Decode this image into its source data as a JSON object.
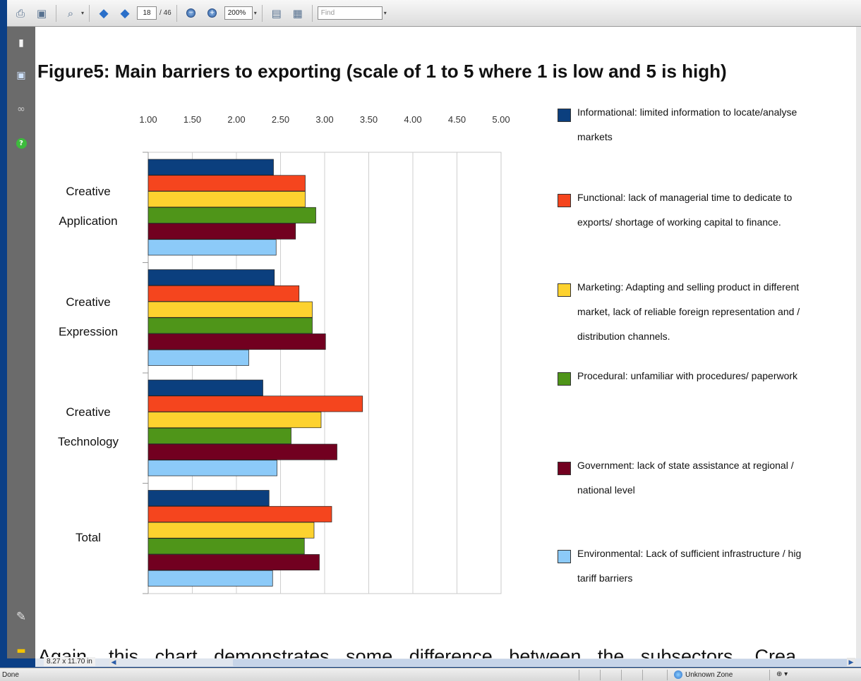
{
  "toolbar": {
    "page_current": "18",
    "page_total": "/ 46",
    "zoom": "200%",
    "find_placeholder": "Find"
  },
  "document": {
    "figure_title": "Figure5: Main barriers to exporting (scale of 1 to 5 where 1 is low and 5 is high)",
    "body_text": "Again, this chart demonstrates some difference between the subsectors. Crea"
  },
  "chart_data": {
    "type": "bar",
    "orientation": "horizontal",
    "title": "Figure5: Main barriers to exporting (scale of 1 to 5 where 1 is low and 5 is high)",
    "xlim": [
      1,
      5
    ],
    "x_ticks": [
      "1.00",
      "1.50",
      "2.00",
      "2.50",
      "3.00",
      "3.50",
      "4.00",
      "4.50",
      "5.00"
    ],
    "x_tick_values": [
      1,
      1.5,
      2,
      2.5,
      3,
      3.5,
      4,
      4.5,
      5
    ],
    "x_axis_position": "top",
    "grid": true,
    "legend_position": "right",
    "categories": [
      [
        "Creative",
        "Application"
      ],
      [
        "Creative",
        "Expression"
      ],
      [
        "Creative",
        "Technology"
      ],
      [
        "Total"
      ]
    ],
    "series": [
      {
        "name": "Informational: limited information to locate/analyse\nmarkets",
        "color": "#0b3f7e",
        "values": [
          2.42,
          2.43,
          2.3,
          2.37
        ]
      },
      {
        "name": "Functional: lack of managerial time to dedicate to\nexports/ shortage of working capital to finance.",
        "color": "#f5451e",
        "values": [
          2.78,
          2.71,
          3.43,
          3.08
        ]
      },
      {
        "name": "Marketing: Adapting and selling product in different\nmarket, lack of reliable foreign representation and /\ndistribution channels.",
        "color": "#fdd22f",
        "values": [
          2.78,
          2.86,
          2.96,
          2.88
        ]
      },
      {
        "name": "Procedural: unfamiliar with procedures/ paperwork",
        "color": "#4f9519",
        "values": [
          2.9,
          2.86,
          2.62,
          2.77
        ]
      },
      {
        "name": "Government: lack of state assistance at regional /\nnational level",
        "color": "#720020",
        "values": [
          2.67,
          3.01,
          3.14,
          2.94
        ]
      },
      {
        "name": "Environmental: Lack of sufficient infrastructure / hig\ntariff barriers",
        "color": "#8ccaf8",
        "values": [
          2.45,
          2.14,
          2.46,
          2.41
        ]
      }
    ]
  },
  "status": {
    "left": "Done",
    "page_size": "8.27 x 11.70 in",
    "zone": "Unknown Zone"
  },
  "icons": [
    "print-icon",
    "save-icon",
    "search-icon",
    "prev-page-icon",
    "next-page-icon",
    "zoom-out-icon",
    "zoom-in-icon",
    "fit-page-icon",
    "fit-width-icon",
    "pages-icon",
    "bookmarks-icon",
    "binoculars-icon",
    "help-icon",
    "attachment-icon",
    "comment-icon",
    "globe-icon"
  ]
}
